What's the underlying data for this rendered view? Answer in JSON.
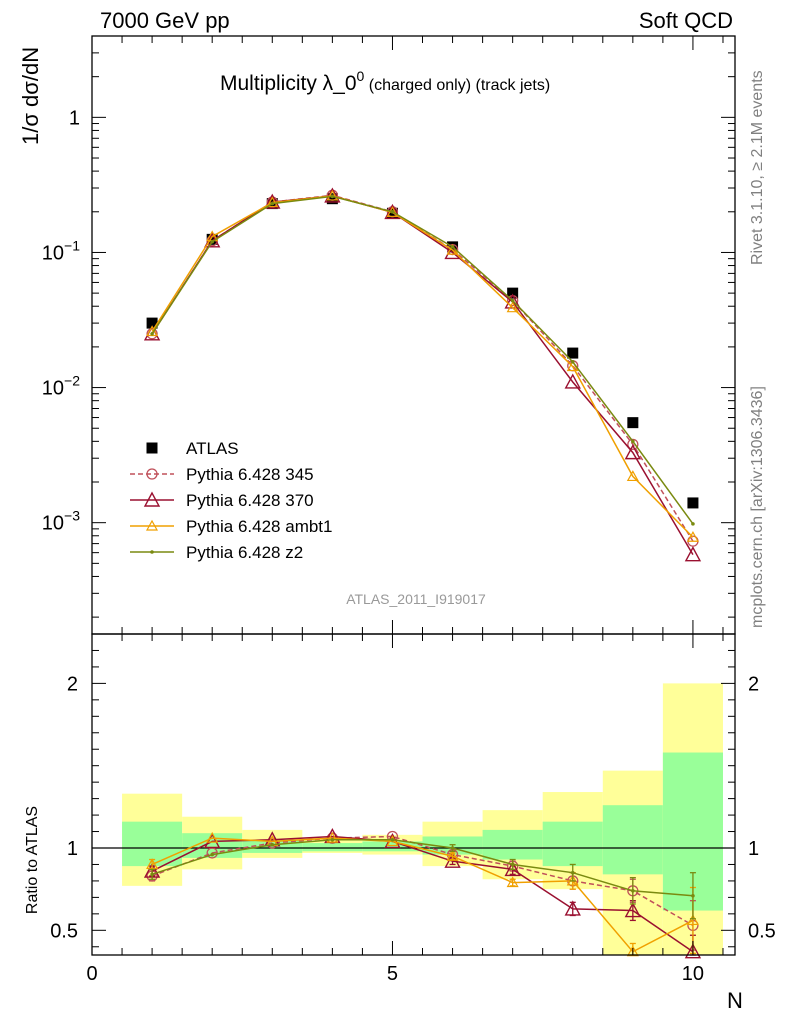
{
  "header": {
    "left": "7000 GeV pp",
    "right": "Soft QCD",
    "title_main": "Multiplicity λ_0",
    "title_sup": "0",
    "title_sub": " (charged only) (track jets)",
    "ylabel": "1/σ dσ/dN",
    "ratio_ylabel": "Ratio to ATLAS",
    "xlabel": "N",
    "analysis_id": "ATLAS_2011_I919017",
    "side_top": "Rivet 3.1.10, ≥ 2.1M events",
    "side_bottom": "mcplots.cern.ch [arXiv:1306.3436]"
  },
  "chart_data": [
    {
      "type": "scatter",
      "panel": "main",
      "xlim": [
        0,
        10.7
      ],
      "yscale": "log",
      "ylim": [
        0.00015,
        4
      ],
      "yticks": [
        {
          "value": 1,
          "base": "1",
          "exp": ""
        },
        {
          "value": 0.1,
          "base": "10",
          "exp": "−1"
        },
        {
          "value": 0.01,
          "base": "10",
          "exp": "−2"
        },
        {
          "value": 0.001,
          "base": "10",
          "exp": "−3"
        }
      ],
      "x": [
        1,
        2,
        3,
        4,
        5,
        6,
        7,
        8,
        9,
        10
      ],
      "series": [
        {
          "name": "ATLAS",
          "color": "#000000",
          "marker": "square",
          "values": [
            0.03,
            0.125,
            0.23,
            0.25,
            0.195,
            0.11,
            0.05,
            0.018,
            0.0055,
            0.0014
          ]
        },
        {
          "name": "Pythia 6.428 345",
          "color": "#c0505a",
          "marker": "circle",
          "dash": true,
          "values": [
            0.025,
            0.122,
            0.236,
            0.265,
            0.2,
            0.105,
            0.044,
            0.0145,
            0.0038,
            0.00073
          ]
        },
        {
          "name": "Pythia 6.428 370",
          "color": "#9a1030",
          "marker": "triangle",
          "values": [
            0.025,
            0.122,
            0.236,
            0.262,
            0.198,
            0.1,
            0.043,
            0.011,
            0.0033,
            0.00058
          ]
        },
        {
          "name": "Pythia 6.428 ambt1",
          "color": "#f0a000",
          "marker": "triangle-small",
          "values": [
            0.026,
            0.131,
            0.234,
            0.262,
            0.198,
            0.104,
            0.039,
            0.0143,
            0.0022,
            0.00078
          ]
        },
        {
          "name": "Pythia 6.428 z2",
          "color": "#7a8a10",
          "marker": "dot",
          "values": [
            0.025,
            0.12,
            0.23,
            0.26,
            0.2,
            0.11,
            0.044,
            0.0155,
            0.004,
            0.00098
          ]
        }
      ]
    },
    {
      "type": "line",
      "panel": "ratio",
      "xlim": [
        0,
        10.7
      ],
      "ylim": [
        0.35,
        2.3
      ],
      "xticks": [
        0,
        5,
        10
      ],
      "yticks": [
        0.5,
        1,
        2
      ],
      "x": [
        1,
        2,
        3,
        4,
        5,
        6,
        7,
        8,
        9,
        10
      ],
      "bands": {
        "green": [
          [
            0.89,
            1.16
          ],
          [
            0.94,
            1.09
          ],
          [
            0.97,
            1.05
          ],
          [
            0.98,
            1.03
          ],
          [
            0.98,
            1.04
          ],
          [
            0.96,
            1.07
          ],
          [
            0.93,
            1.11
          ],
          [
            0.89,
            1.16
          ],
          [
            0.84,
            1.26
          ],
          [
            0.62,
            1.58
          ]
        ],
        "yellow": [
          [
            0.77,
            1.33
          ],
          [
            0.87,
            1.19
          ],
          [
            0.94,
            1.11
          ],
          [
            0.97,
            1.06
          ],
          [
            0.96,
            1.08
          ],
          [
            0.89,
            1.16
          ],
          [
            0.81,
            1.23
          ],
          [
            0.75,
            1.34
          ],
          [
            0.35,
            1.47
          ],
          [
            0.35,
            2.0
          ]
        ]
      },
      "series": [
        {
          "name": "Pythia 6.428 345",
          "color": "#c0505a",
          "marker": "circle",
          "dash": true,
          "values": [
            0.83,
            0.97,
            1.03,
            1.06,
            1.07,
            0.96,
            0.89,
            0.8,
            0.74,
            0.53
          ]
        },
        {
          "name": "Pythia 6.428 370",
          "color": "#9a1030",
          "marker": "triangle",
          "values": [
            0.86,
            1.04,
            1.05,
            1.07,
            1.04,
            0.92,
            0.87,
            0.63,
            0.62,
            0.37
          ]
        },
        {
          "name": "Pythia 6.428 ambt1",
          "color": "#f0a000",
          "marker": "triangle-small",
          "values": [
            0.9,
            1.06,
            1.04,
            1.06,
            1.04,
            0.95,
            0.79,
            0.8,
            0.37,
            0.56
          ]
        },
        {
          "name": "Pythia 6.428 z2",
          "color": "#7a8a10",
          "marker": "dot",
          "values": [
            0.84,
            0.96,
            1.02,
            1.05,
            1.05,
            1.0,
            0.9,
            0.85,
            0.74,
            0.71
          ]
        }
      ],
      "errors": {
        "Pythia 6.428 345": [
          0.03,
          0.01,
          0.01,
          0.01,
          0.01,
          0.02,
          0.03,
          0.05,
          0.07,
          0.15
        ],
        "Pythia 6.428 370": [
          0.03,
          0.01,
          0.01,
          0.01,
          0.01,
          0.02,
          0.03,
          0.04,
          0.06,
          0.1
        ],
        "Pythia 6.428 ambt1": [
          0.03,
          0.01,
          0.01,
          0.01,
          0.01,
          0.02,
          0.02,
          0.05,
          0.05,
          0.2
        ],
        "Pythia 6.428 z2": [
          0.03,
          0.01,
          0.01,
          0.01,
          0.01,
          0.02,
          0.03,
          0.05,
          0.08,
          0.14
        ]
      }
    }
  ]
}
